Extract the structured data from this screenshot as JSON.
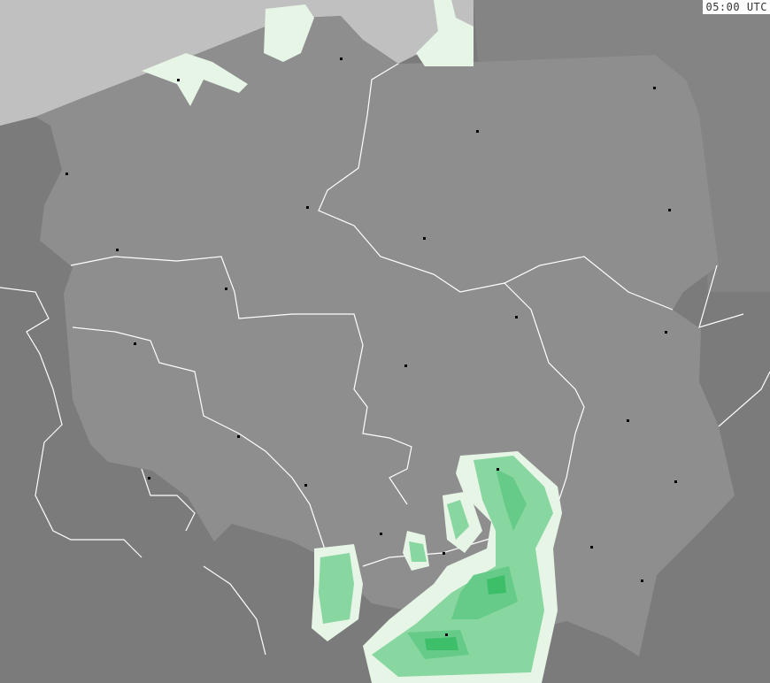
{
  "timestamp": "05:00 UTC",
  "colors": {
    "sea": "#c0c0c0",
    "country": "#8e8e8e",
    "neighbors": "#7b7b7b",
    "borders": "#ffffff",
    "precip_trace": "#e6f5e6",
    "precip_light": "#88d6a0",
    "precip_moderate": "#66ca88",
    "precip_heavy": "#3dbf6a"
  }
}
